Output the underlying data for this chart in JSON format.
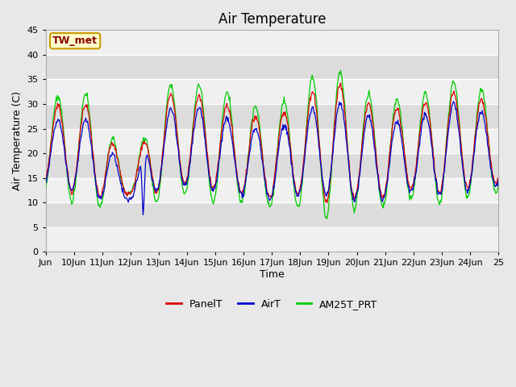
{
  "title": "Air Temperature",
  "ylabel": "Air Temperature (C)",
  "xlabel": "Time",
  "annotation_text": "TW_met",
  "annotation_color": "#8b0000",
  "annotation_bg": "#ffffcc",
  "annotation_border": "#cc9900",
  "ylim": [
    0,
    45
  ],
  "yticks": [
    0,
    5,
    10,
    15,
    20,
    25,
    30,
    35,
    40,
    45
  ],
  "bg_color": "#e8e8e8",
  "band_light": "#f0f0f0",
  "band_dark": "#dcdcdc",
  "grid_color": "#ffffff",
  "line_colors": {
    "PanelT": "#dd0000",
    "AirT": "#0000cc",
    "AM25T_PRT": "#00cc00"
  },
  "x_tick_labels": [
    "Jun",
    "10Jun",
    "11Jun",
    "12Jun",
    "13Jun",
    "14Jun",
    "15Jun",
    "16Jun",
    "17Jun",
    "18Jun",
    "19Jun",
    "20Jun",
    "21Jun",
    "22Jun",
    "23Jun",
    "24Jun",
    "25"
  ],
  "legend_labels": [
    "PanelT",
    "AirT",
    "AM25T_PRT"
  ],
  "title_fontsize": 12,
  "tick_fontsize": 8,
  "ylabel_fontsize": 9,
  "xlabel_fontsize": 9
}
